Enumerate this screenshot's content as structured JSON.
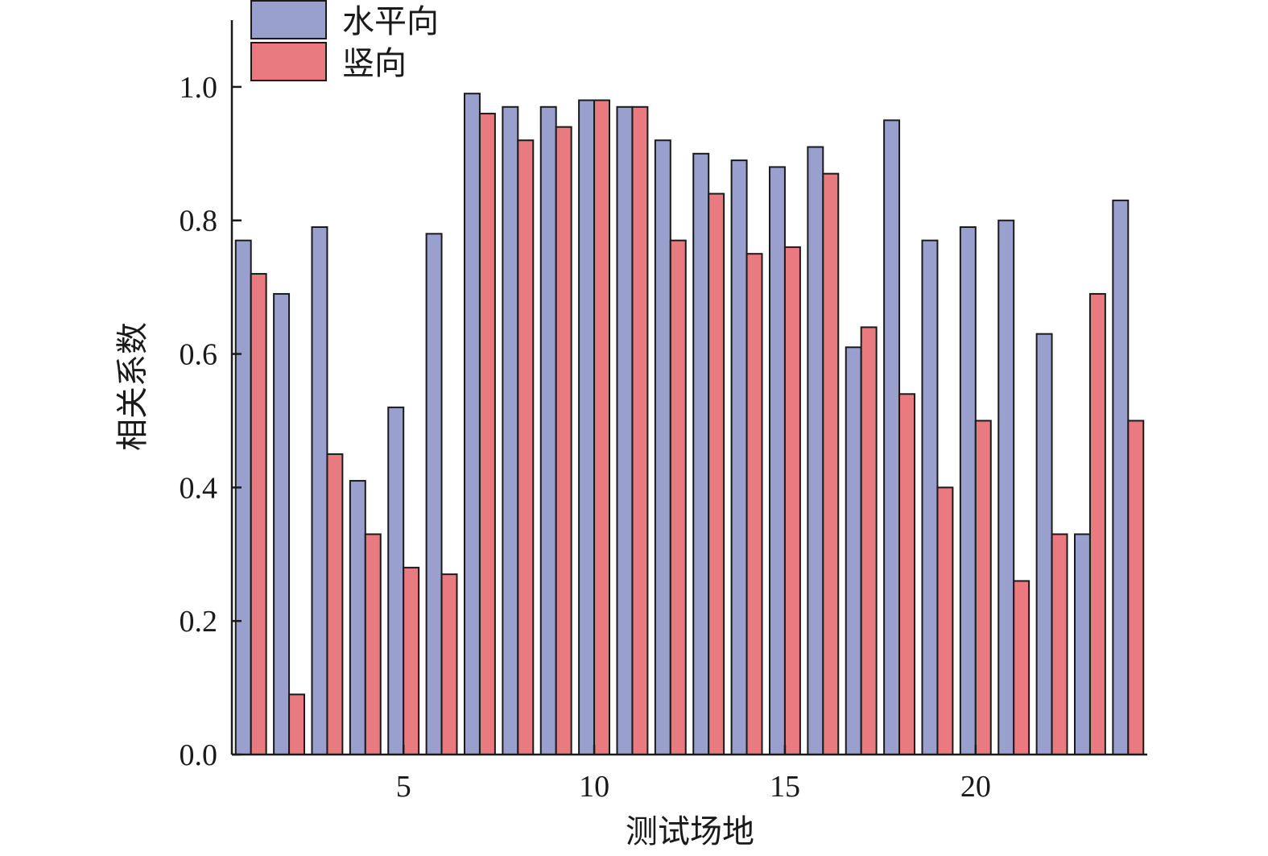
{
  "chart_data": {
    "type": "bar",
    "xlabel": "测试场地",
    "ylabel": "相关系数",
    "ylim": [
      0,
      1.1
    ],
    "xlim": [
      0.5,
      24.5
    ],
    "yticks": [
      "0.0",
      "0.2",
      "0.4",
      "0.6",
      "0.8",
      "1.0"
    ],
    "xticks": [
      "5",
      "10",
      "15",
      "20"
    ],
    "legend_position": "top-left",
    "categories": [
      1,
      2,
      3,
      4,
      5,
      6,
      7,
      8,
      9,
      10,
      11,
      12,
      13,
      14,
      15,
      16,
      17,
      18,
      19,
      20,
      21,
      22,
      23,
      24
    ],
    "series": [
      {
        "name": "水平向",
        "color": "#9aa0cd",
        "values": [
          0.77,
          0.69,
          0.79,
          0.41,
          0.52,
          0.78,
          0.99,
          0.97,
          0.97,
          0.98,
          0.97,
          0.92,
          0.9,
          0.89,
          0.88,
          0.91,
          0.61,
          0.95,
          0.77,
          0.79,
          0.8,
          0.63,
          0.33,
          0.83
        ]
      },
      {
        "name": "竖向",
        "color": "#e87a80",
        "values": [
          0.72,
          0.09,
          0.45,
          0.33,
          0.28,
          0.27,
          0.96,
          0.92,
          0.94,
          0.98,
          0.97,
          0.77,
          0.84,
          0.75,
          0.76,
          0.87,
          0.64,
          0.54,
          0.4,
          0.5,
          0.26,
          0.33,
          0.69,
          0.5
        ]
      }
    ]
  }
}
